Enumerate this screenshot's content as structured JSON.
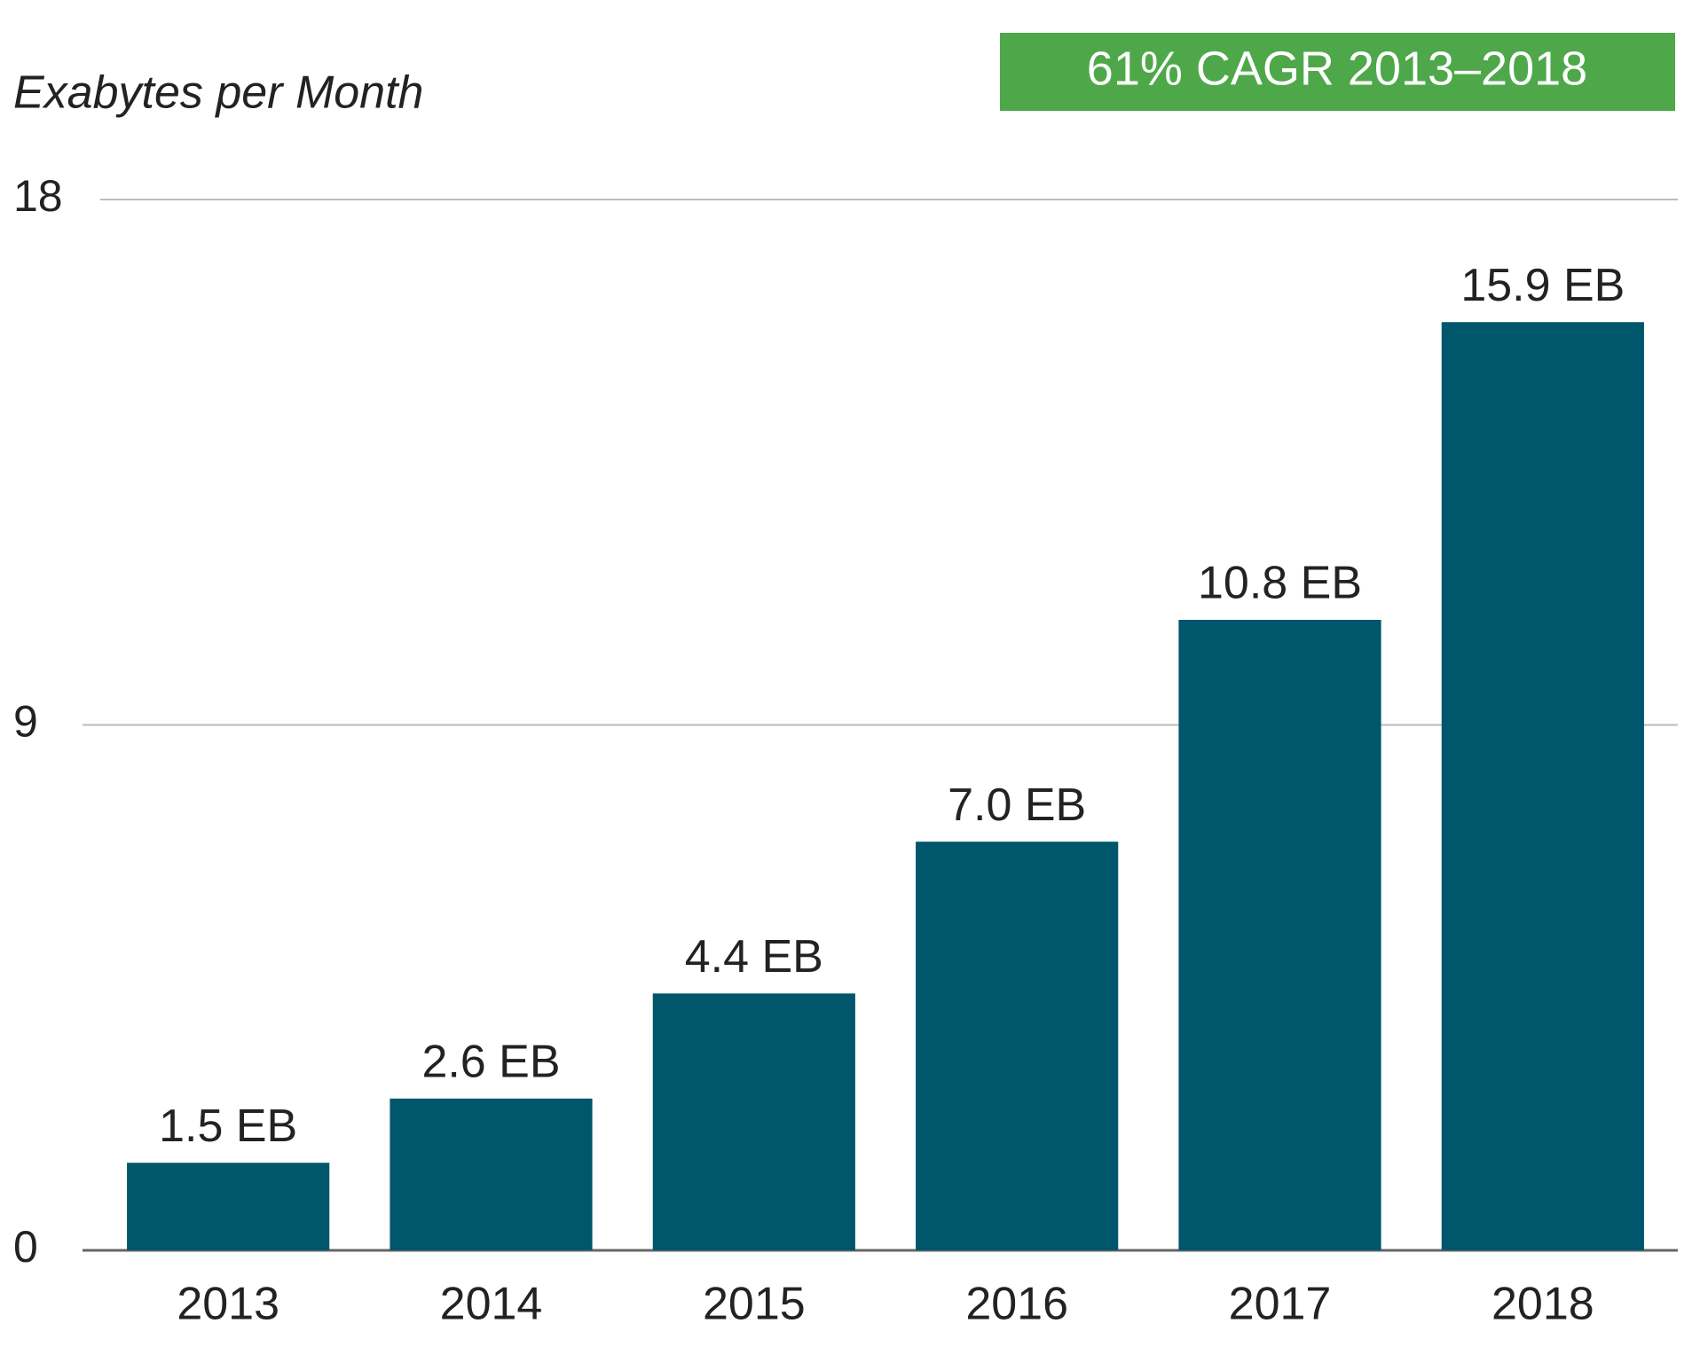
{
  "chart_data": {
    "type": "bar",
    "ylabel": "Exabytes per Month",
    "annotation": "61% CAGR 2013–2018",
    "annotation_color": "#4ea84a",
    "categories": [
      "2013",
      "2014",
      "2015",
      "2016",
      "2017",
      "2018"
    ],
    "values": [
      1.5,
      2.6,
      4.4,
      7.0,
      10.8,
      15.9
    ],
    "value_labels": [
      "1.5 EB",
      "2.6 EB",
      "4.4 EB",
      "7.0 EB",
      "10.8 EB",
      "15.9 EB"
    ],
    "color": "#00566b",
    "ylim": [
      0,
      18
    ],
    "yticks": [
      0,
      9,
      18
    ],
    "grid": true
  }
}
